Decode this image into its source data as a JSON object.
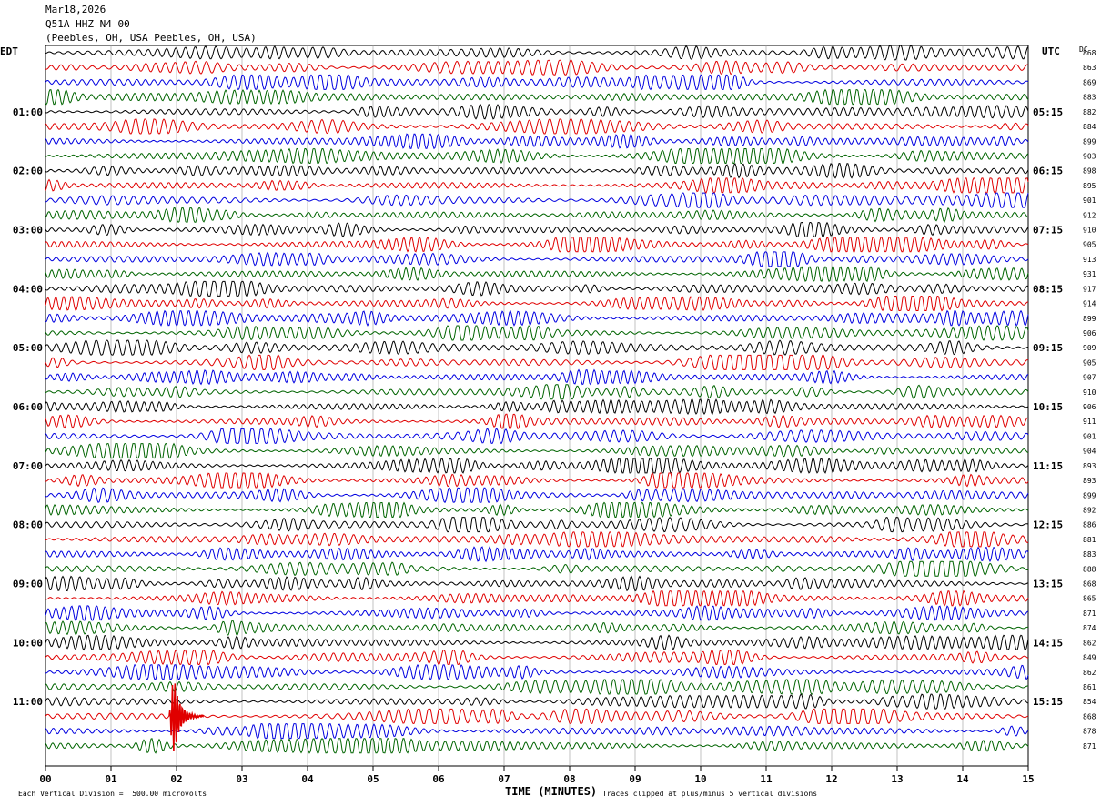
{
  "header": {
    "date": "Mar18,2026",
    "station": "Q51A HHZ N4 00",
    "location": "(Peebles, OH, USA Peebles, OH, USA)"
  },
  "left_zone_label": "EDT",
  "right_zone_label": "UTC",
  "dc_label": "DC",
  "colors": {
    "cycle": [
      "#000000",
      "#e00000",
      "#0000e0",
      "#006400"
    ],
    "event": "#e00000"
  },
  "footer": {
    "x_axis_title": "TIME (MINUTES)",
    "scale_note": "Each Vertical Division =  500.00 microvolts",
    "clip_note": "Traces clipped at plus/minus 5 vertical divisions"
  },
  "chart_data": {
    "type": "line",
    "title": "",
    "xlabel": "TIME (MINUTES)",
    "xlim": [
      0,
      15
    ],
    "x_ticks": [
      "00",
      "01",
      "02",
      "03",
      "04",
      "05",
      "06",
      "07",
      "08",
      "09",
      "10",
      "11",
      "12",
      "13",
      "14",
      "15"
    ],
    "trace_count": 48,
    "traces_per_hour": 4,
    "left_hour_labels": [
      "01:00",
      "02:00",
      "03:00",
      "04:00",
      "05:00",
      "06:00",
      "07:00",
      "08:00",
      "09:00",
      "10:00",
      "11:00"
    ],
    "right_hour_labels": [
      "05:15",
      "06:15",
      "07:15",
      "08:15",
      "09:15",
      "10:15",
      "11:15",
      "12:15",
      "13:15",
      "14:15",
      "15:15"
    ],
    "dc_values": [
      "868",
      "863",
      "869",
      "883",
      "882",
      "884",
      "899",
      "903",
      "898",
      "895",
      "901",
      "912",
      "910",
      "905",
      "913",
      "931",
      "917",
      "914",
      "899",
      "906",
      "909",
      "905",
      "907",
      "910",
      "906",
      "911",
      "901",
      "904",
      "893",
      "893",
      "899",
      "892",
      "886",
      "881",
      "883",
      "888",
      "868",
      "865",
      "871",
      "874",
      "862",
      "849",
      "862",
      "861",
      "854",
      "868",
      "878",
      "871"
    ],
    "event": {
      "trace_index": 45,
      "minute": 2.0
    }
  }
}
